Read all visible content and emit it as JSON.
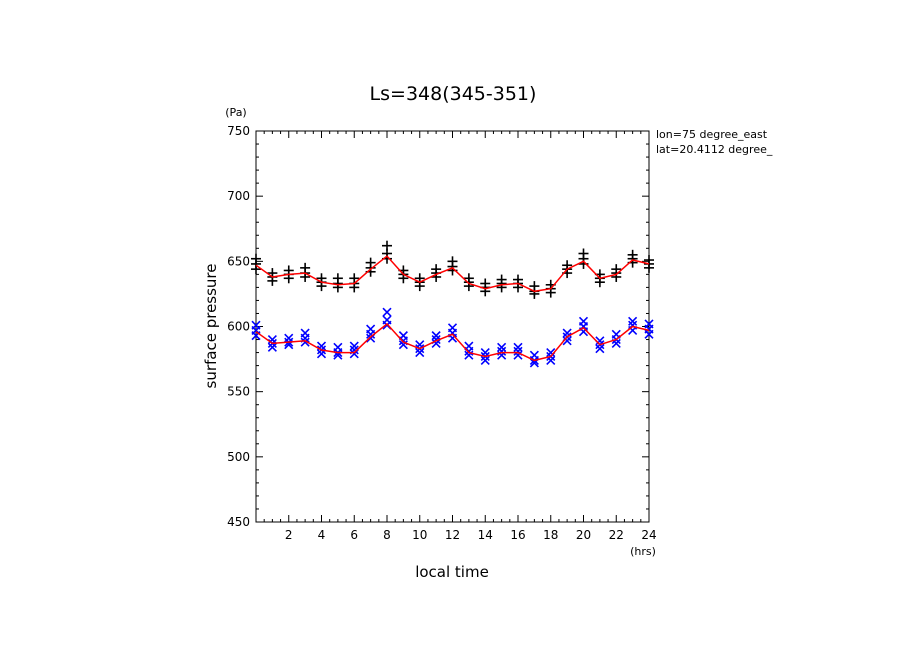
{
  "chart_data": {
    "type": "scatter",
    "title": "Ls=348(345-351)",
    "xlabel": "local time",
    "ylabel": "surface pressure",
    "xunit": "(hrs)",
    "yunit": "(Pa)",
    "xlim": [
      0,
      24
    ],
    "ylim": [
      450,
      750
    ],
    "xticks": [
      2,
      4,
      6,
      8,
      10,
      12,
      14,
      16,
      18,
      20,
      22,
      24
    ],
    "xtick_labels": [
      "2",
      "4",
      "6",
      "8",
      "10",
      "12",
      "14",
      "16",
      "18",
      "20",
      "22",
      "24"
    ],
    "yticks": [
      450,
      500,
      550,
      600,
      650,
      700,
      750
    ],
    "ytick_labels": [
      "450",
      "500",
      "550",
      "600",
      "650",
      "700",
      "750"
    ],
    "annotations": [
      "lon=75 degree_east",
      "lat=20.4112 degree_"
    ],
    "grid": false,
    "series": [
      {
        "marker": "plus",
        "color": "#000000",
        "x": [
          0,
          0,
          0,
          1,
          1,
          1,
          2,
          2,
          2,
          3,
          3,
          3,
          4,
          4,
          4,
          5,
          5,
          5,
          6,
          6,
          6,
          7,
          7,
          7,
          8,
          8,
          8,
          9,
          9,
          9,
          10,
          10,
          10,
          11,
          11,
          11,
          12,
          12,
          12,
          13,
          13,
          13,
          14,
          14,
          14,
          15,
          15,
          15,
          16,
          16,
          16,
          17,
          17,
          17,
          18,
          18,
          18,
          19,
          19,
          19,
          20,
          20,
          20,
          21,
          21,
          21,
          22,
          22,
          22,
          23,
          23,
          23,
          24,
          24,
          24
        ],
        "y": [
          652,
          648,
          644,
          641,
          638,
          635,
          643,
          640,
          637,
          645,
          641,
          638,
          637,
          634,
          631,
          637,
          633,
          630,
          637,
          633,
          630,
          649,
          645,
          642,
          662,
          656,
          652,
          643,
          640,
          637,
          637,
          634,
          631,
          644,
          641,
          638,
          650,
          646,
          643,
          637,
          634,
          631,
          633,
          630,
          627,
          636,
          633,
          630,
          636,
          633,
          630,
          631,
          627,
          625,
          632,
          629,
          626,
          647,
          644,
          641,
          656,
          652,
          648,
          640,
          637,
          634,
          644,
          641,
          638,
          655,
          652,
          649,
          651,
          648,
          645
        ]
      },
      {
        "marker": "x",
        "color": "#0000ff",
        "x": [
          0,
          0,
          0,
          1,
          1,
          1,
          2,
          2,
          2,
          3,
          3,
          3,
          4,
          4,
          4,
          5,
          5,
          5,
          6,
          6,
          6,
          7,
          7,
          7,
          8,
          8,
          8,
          9,
          9,
          9,
          10,
          10,
          10,
          11,
          11,
          11,
          12,
          12,
          12,
          13,
          13,
          13,
          14,
          14,
          14,
          15,
          15,
          15,
          16,
          16,
          16,
          17,
          17,
          17,
          18,
          18,
          18,
          19,
          19,
          19,
          20,
          20,
          20,
          21,
          21,
          21,
          22,
          22,
          22,
          23,
          23,
          23,
          24,
          24,
          24
        ],
        "y": [
          601,
          597,
          593,
          590,
          587,
          584,
          591,
          588,
          586,
          595,
          591,
          588,
          585,
          582,
          579,
          584,
          580,
          578,
          585,
          582,
          579,
          598,
          594,
          591,
          611,
          605,
          601,
          593,
          589,
          586,
          586,
          583,
          580,
          593,
          590,
          587,
          599,
          595,
          591,
          585,
          581,
          578,
          580,
          577,
          574,
          584,
          581,
          578,
          584,
          581,
          578,
          578,
          574,
          572,
          580,
          577,
          574,
          595,
          592,
          589,
          604,
          600,
          596,
          589,
          586,
          583,
          594,
          590,
          587,
          604,
          601,
          597,
          602,
          598,
          594
        ]
      },
      {
        "marker": "line",
        "color": "#ff0000",
        "x": [
          0,
          1,
          2,
          3,
          4,
          5,
          6,
          7,
          8,
          9,
          10,
          11,
          12,
          13,
          14,
          15,
          16,
          17,
          18,
          19,
          20,
          21,
          22,
          23,
          24
        ],
        "y": [
          647,
          638,
          640,
          641,
          634,
          632,
          633,
          644,
          654,
          640,
          634,
          640,
          645,
          633,
          629,
          632,
          633,
          627,
          629,
          644,
          650,
          637,
          640,
          651,
          648
        ]
      },
      {
        "marker": "line",
        "color": "#ff0000",
        "x": [
          0,
          1,
          2,
          3,
          4,
          5,
          6,
          7,
          8,
          9,
          10,
          11,
          12,
          13,
          14,
          15,
          16,
          17,
          18,
          19,
          20,
          21,
          22,
          23,
          24
        ],
        "y": [
          596,
          587,
          588,
          589,
          582,
          580,
          580,
          592,
          602,
          588,
          583,
          589,
          594,
          580,
          577,
          580,
          580,
          574,
          577,
          592,
          599,
          586,
          590,
          600,
          597
        ]
      }
    ]
  }
}
